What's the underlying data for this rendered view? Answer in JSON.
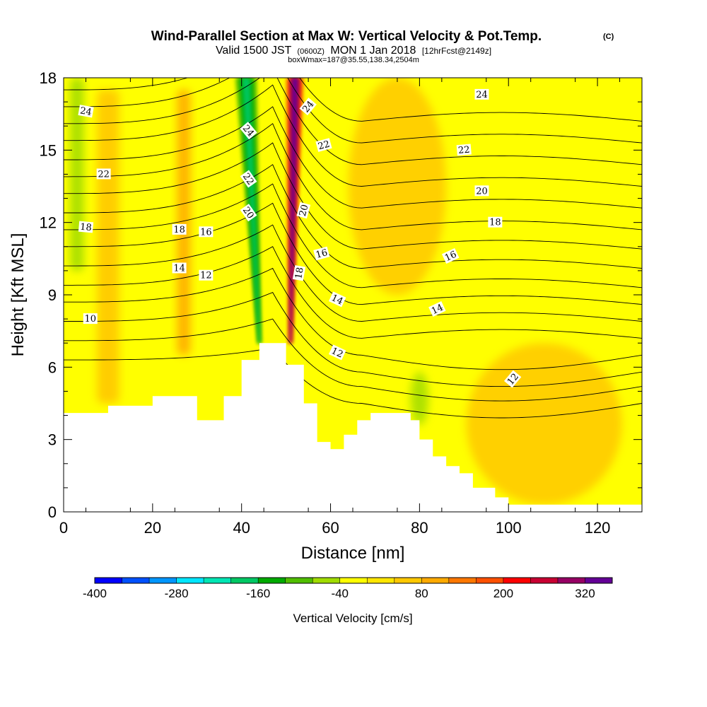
{
  "chart_data": {
    "type": "heatmap",
    "title": "Wind-Parallel Section at Max W: Vertical Velocity & Pot.Temp.",
    "title_mark": "(C)",
    "subtitle_valid": "Valid 1500 JST",
    "subtitle_utc": "(0600Z)",
    "subtitle_date": "MON 1 Jan 2018",
    "subtitle_fcst": "[12hrFcst@2149z]",
    "subtitle_box": "boxWmax=187@35.55,138.34,2504m",
    "xlabel": "Distance [nm]",
    "ylabel": "Height [Kft MSL]",
    "xlim": [
      0,
      130
    ],
    "ylim": [
      0,
      18
    ],
    "x_ticks": [
      {
        "value": 0,
        "label": "0"
      },
      {
        "value": 20,
        "label": "20"
      },
      {
        "value": 40,
        "label": "40"
      },
      {
        "value": 60,
        "label": "60"
      },
      {
        "value": 80,
        "label": "80"
      },
      {
        "value": 100,
        "label": "100"
      },
      {
        "value": 120,
        "label": "120"
      }
    ],
    "y_ticks": [
      {
        "value": 0,
        "label": "0"
      },
      {
        "value": 3,
        "label": "3"
      },
      {
        "value": 6,
        "label": "6"
      },
      {
        "value": 9,
        "label": "9"
      },
      {
        "value": 12,
        "label": "12"
      },
      {
        "value": 15,
        "label": "15"
      },
      {
        "value": 18,
        "label": "18"
      }
    ],
    "colorbar": {
      "label": "Vertical Velocity [cm/s]",
      "min": -400,
      "max": 360,
      "step": 40,
      "colors": [
        "#0000ff",
        "#0050ff",
        "#0096ff",
        "#00e6ff",
        "#00e6b4",
        "#00c864",
        "#00aa00",
        "#50be00",
        "#a0dc00",
        "#ffff00",
        "#ffe600",
        "#ffc800",
        "#ffaa00",
        "#ff7800",
        "#ff5000",
        "#ff0000",
        "#c80032",
        "#960064",
        "#640096"
      ],
      "tick_labels": [
        {
          "value": -400,
          "label": "-400"
        },
        {
          "value": -280,
          "label": "-280"
        },
        {
          "value": -160,
          "label": "-160"
        },
        {
          "value": -40,
          "label": "-40"
        },
        {
          "value": 80,
          "label": "80"
        },
        {
          "value": 200,
          "label": "200"
        },
        {
          "value": 320,
          "label": "320"
        }
      ]
    },
    "terrain_profile": [
      [
        0,
        4.1
      ],
      [
        10,
        4.1
      ],
      [
        10,
        4.4
      ],
      [
        20,
        4.4
      ],
      [
        20,
        4.8
      ],
      [
        30,
        4.8
      ],
      [
        30,
        3.8
      ],
      [
        36,
        3.8
      ],
      [
        36,
        4.8
      ],
      [
        40,
        4.8
      ],
      [
        40,
        6.3
      ],
      [
        44,
        6.3
      ],
      [
        44,
        7.0
      ],
      [
        50,
        7.0
      ],
      [
        50,
        6.1
      ],
      [
        54,
        6.1
      ],
      [
        54,
        4.5
      ],
      [
        57,
        4.5
      ],
      [
        57,
        2.9
      ],
      [
        60,
        2.9
      ],
      [
        60,
        2.6
      ],
      [
        63,
        2.6
      ],
      [
        63,
        3.2
      ],
      [
        66,
        3.2
      ],
      [
        66,
        3.8
      ],
      [
        69,
        3.8
      ],
      [
        69,
        4.1
      ],
      [
        78,
        4.1
      ],
      [
        78,
        3.8
      ],
      [
        80,
        3.8
      ],
      [
        80,
        3.0
      ],
      [
        83,
        3.0
      ],
      [
        83,
        2.3
      ],
      [
        86,
        2.3
      ],
      [
        86,
        1.9
      ],
      [
        89,
        1.9
      ],
      [
        89,
        1.6
      ],
      [
        92,
        1.6
      ],
      [
        92,
        1.0
      ],
      [
        97,
        1.0
      ],
      [
        97,
        0.6
      ],
      [
        100,
        0.6
      ],
      [
        100,
        0.3
      ],
      [
        130,
        0.3
      ]
    ],
    "velocity_features": [
      {
        "type": "orange-band",
        "x": 27,
        "y0": 6.5,
        "y1": 17.5,
        "width": 3,
        "value": 80
      },
      {
        "type": "orange-band",
        "x": 10,
        "y0": 4.5,
        "y1": 17.5,
        "width": 5,
        "value": 60
      },
      {
        "type": "green-band",
        "x": 3,
        "y0": 10,
        "y1": 18,
        "width": 3,
        "value": -80
      },
      {
        "type": "downdraft-core",
        "x": 44,
        "y0": 7.0,
        "y1": 18,
        "width": 5,
        "value": -200
      },
      {
        "type": "updraft-core",
        "x": 51,
        "y0": 7.0,
        "y1": 18,
        "width": 4,
        "value": 320
      },
      {
        "type": "orange-region",
        "x": 75,
        "y0": 9,
        "y1": 18,
        "width": 22,
        "value": 60
      },
      {
        "type": "green-spot",
        "x": 80,
        "y0": 3.6,
        "y1": 5.8,
        "width": 4,
        "value": -80
      },
      {
        "type": "orange-region",
        "x": 108,
        "y0": 0.3,
        "y1": 7.0,
        "width": 35,
        "value": 60
      }
    ],
    "theta_isentropes": [
      {
        "height_west": 6.3,
        "peak": 0.5,
        "east": 4.5
      },
      {
        "height_west": 7.1,
        "peak": 0.9,
        "east": 5.2
      },
      {
        "height_west": 7.9,
        "peak": 1.2,
        "east": 5.8
      },
      {
        "height_west": 8.7,
        "peak": 1.4,
        "east": 6.5
      },
      {
        "height_west": 9.4,
        "peak": 1.6,
        "east": 7.2
      },
      {
        "height_west": 10.2,
        "peak": 1.7,
        "east": 7.9
      },
      {
        "height_west": 11.0,
        "peak": 1.8,
        "east": 8.6
      },
      {
        "height_west": 11.7,
        "peak": 1.9,
        "east": 9.3
      },
      {
        "height_west": 12.4,
        "peak": 2.0,
        "east": 10.1
      },
      {
        "height_west": 13.2,
        "peak": 2.1,
        "east": 10.9
      },
      {
        "height_west": 13.9,
        "peak": 2.2,
        "east": 11.7
      },
      {
        "height_west": 14.6,
        "peak": 2.2,
        "east": 12.6
      },
      {
        "height_west": 15.4,
        "peak": 2.3,
        "east": 13.5
      },
      {
        "height_west": 16.1,
        "peak": 2.3,
        "east": 14.4
      },
      {
        "height_west": 16.8,
        "peak": 2.4,
        "east": 15.3
      },
      {
        "height_west": 17.5,
        "peak": 2.4,
        "east": 16.2
      }
    ],
    "contour_labels": [
      {
        "text": "24",
        "x": 5,
        "y": 16.6,
        "angle": 10
      },
      {
        "text": "22",
        "x": 9,
        "y": 14.0,
        "angle": 0
      },
      {
        "text": "18",
        "x": 5,
        "y": 11.8,
        "angle": 5
      },
      {
        "text": "10",
        "x": 6,
        "y": 8.0,
        "angle": 0
      },
      {
        "text": "18",
        "x": 26,
        "y": 11.7,
        "angle": 0
      },
      {
        "text": "16",
        "x": 32,
        "y": 11.6,
        "angle": 0
      },
      {
        "text": "14",
        "x": 26,
        "y": 10.1,
        "angle": 0
      },
      {
        "text": "12",
        "x": 32,
        "y": 9.8,
        "angle": 0
      },
      {
        "text": "24",
        "x": 41.5,
        "y": 15.8,
        "angle": 50
      },
      {
        "text": "22",
        "x": 41.5,
        "y": 13.8,
        "angle": 55
      },
      {
        "text": "20",
        "x": 41.5,
        "y": 12.4,
        "angle": 55
      },
      {
        "text": "24",
        "x": 55,
        "y": 16.8,
        "angle": -50
      },
      {
        "text": "22",
        "x": 58.5,
        "y": 15.2,
        "angle": -15
      },
      {
        "text": "20",
        "x": 54,
        "y": 12.5,
        "angle": -75
      },
      {
        "text": "18",
        "x": 53,
        "y": 9.9,
        "angle": -80
      },
      {
        "text": "16",
        "x": 58,
        "y": 10.7,
        "angle": -15
      },
      {
        "text": "14",
        "x": 61.5,
        "y": 8.8,
        "angle": 25
      },
      {
        "text": "12",
        "x": 61.5,
        "y": 6.6,
        "angle": 25
      },
      {
        "text": "24",
        "x": 94,
        "y": 17.3,
        "angle": 0
      },
      {
        "text": "22",
        "x": 90,
        "y": 15.0,
        "angle": -5
      },
      {
        "text": "20",
        "x": 94,
        "y": 13.3,
        "angle": 0
      },
      {
        "text": "18",
        "x": 97,
        "y": 12.0,
        "angle": 0
      },
      {
        "text": "16",
        "x": 87,
        "y": 10.6,
        "angle": -25
      },
      {
        "text": "14",
        "x": 84,
        "y": 8.4,
        "angle": -25
      },
      {
        "text": "12",
        "x": 101,
        "y": 5.5,
        "angle": -50
      }
    ]
  }
}
